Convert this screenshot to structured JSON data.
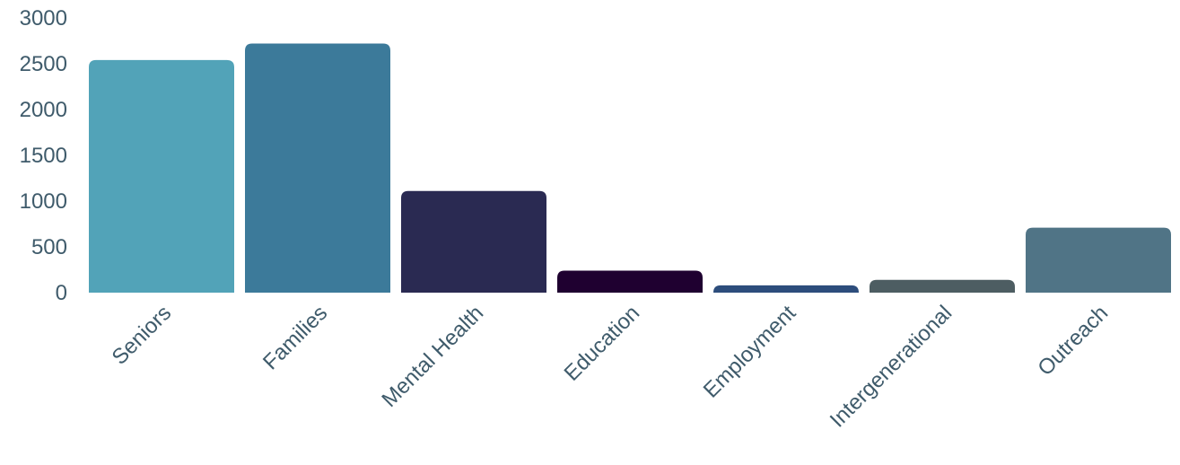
{
  "chart_data": {
    "type": "bar",
    "categories": [
      "Seniors",
      "Families",
      "Mental Health",
      "Education",
      "Employment",
      "Intergenerational",
      "Outreach"
    ],
    "values": [
      2540,
      2720,
      1110,
      240,
      80,
      140,
      710
    ],
    "colors": [
      "#52a3b8",
      "#3c7a9a",
      "#2a2a52",
      "#1f0030",
      "#2d4d7c",
      "#4d5d62",
      "#507486"
    ],
    "ylim": [
      0,
      3000
    ],
    "yticks": [
      0,
      500,
      1000,
      1500,
      2000,
      2500,
      3000
    ],
    "title": "",
    "xlabel": "",
    "ylabel": "",
    "grid": false,
    "legend": "none"
  }
}
